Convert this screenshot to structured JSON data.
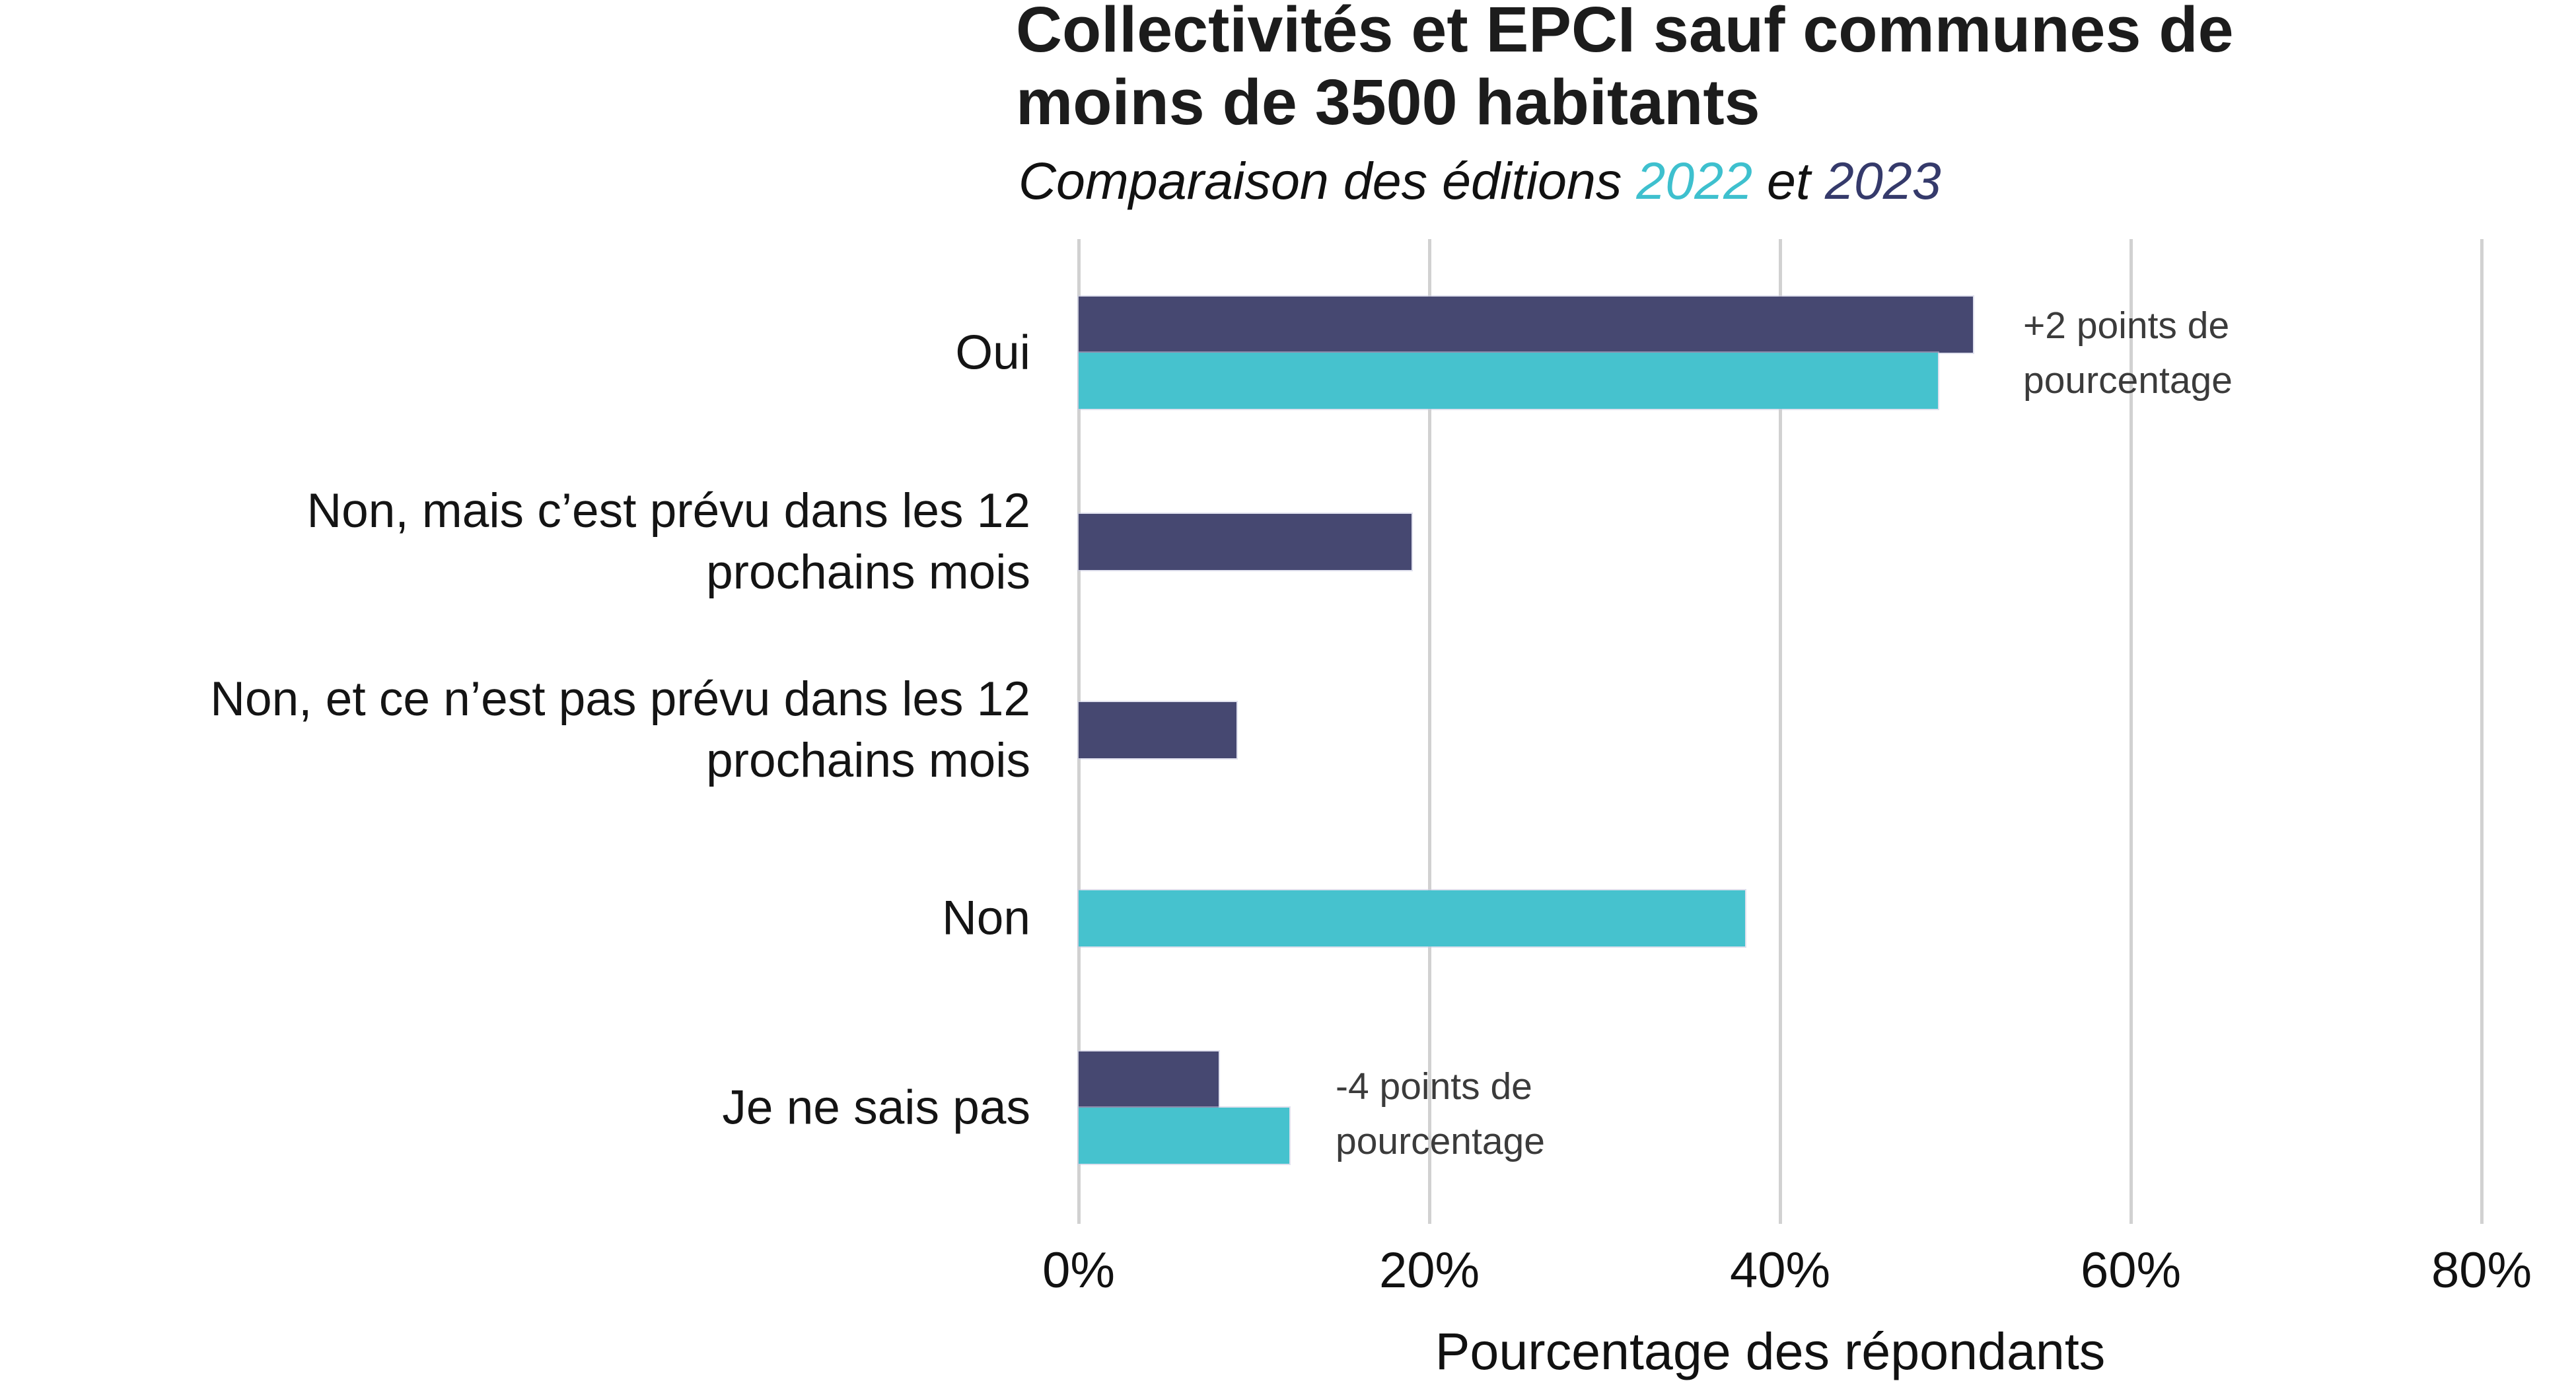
{
  "header": {
    "title": "Collectivités et EPCI sauf communes de\nmoins de 3500 habitants",
    "subtitle_prefix": "Comparaison des éditions ",
    "subtitle_year_2022": "2022",
    "subtitle_connector": " et ",
    "subtitle_year_2023": "2023"
  },
  "chart_data": {
    "type": "bar",
    "orientation": "horizontal",
    "title": "Collectivités et EPCI sauf communes de moins de 3500 habitants",
    "subtitle": "Comparaison des éditions 2022 et 2023",
    "categories": [
      "Oui",
      "Non, mais c’est prévu dans les 12\nprochains mois",
      "Non, et ce n’est pas prévu dans les 12\nprochains mois",
      "Non",
      "Je ne sais pas"
    ],
    "series": [
      {
        "name": "2023",
        "color": "#464871",
        "values": [
          51,
          19,
          9,
          null,
          8
        ]
      },
      {
        "name": "2022",
        "color": "#46c2ce",
        "values": [
          49,
          null,
          null,
          38,
          12
        ]
      }
    ],
    "annotations": [
      {
        "text": "+2 points de pourcentage",
        "category": "Oui"
      },
      {
        "text": "-4 points de pourcentage",
        "category": "Je ne sais pas"
      }
    ],
    "x_ticks": [
      {
        "label": "0%",
        "value": 0
      },
      {
        "label": "20%",
        "value": 20
      },
      {
        "label": "40%",
        "value": 40
      },
      {
        "label": "60%",
        "value": 60
      },
      {
        "label": "80%",
        "value": 80
      }
    ],
    "xlabel": "Pourcentage des répondants",
    "ylabel": "",
    "xlim": [
      0,
      85
    ],
    "grid": "vertical gridlines only",
    "legend": "none (series years colored in subtitle)"
  },
  "colors": {
    "bar_2023": "#464871",
    "bar_2022": "#46c2ce",
    "subtitle_2022": "#3ec0ce",
    "subtitle_2023": "#353a6b",
    "gridline": "#d1d1d1",
    "annotation_text": "#3b3b3b",
    "title_text": "#1c1c1c",
    "background": "#ffffff"
  }
}
